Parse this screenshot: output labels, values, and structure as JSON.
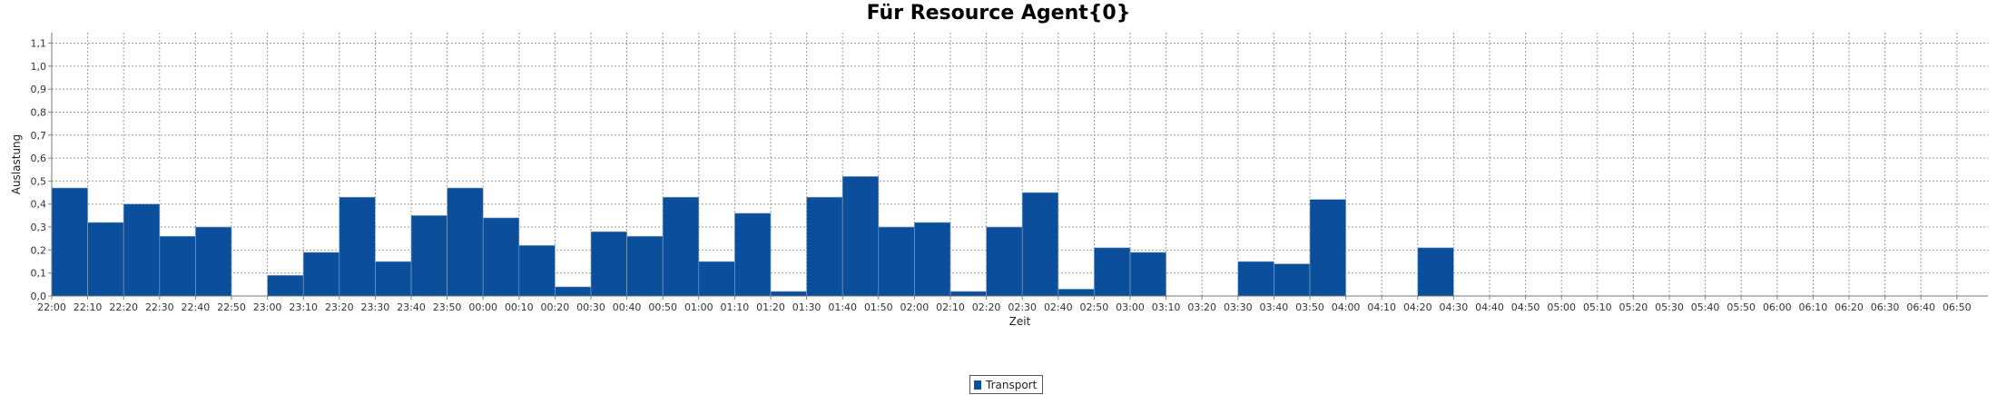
{
  "chart_data": {
    "type": "bar",
    "title": "Für Resource Agent{0}",
    "xlabel": "Zeit",
    "ylabel": "Auslastung",
    "ylim": [
      0,
      1.1
    ],
    "yticks": [
      "0,0",
      "0,1",
      "0,2",
      "0,3",
      "0,4",
      "0,5",
      "0,6",
      "0,7",
      "0,8",
      "0,9",
      "1,0",
      "1,1"
    ],
    "grid": true,
    "legend_position": "bottom-center",
    "categories": [
      "22:00",
      "22:10",
      "22:20",
      "22:30",
      "22:40",
      "22:50",
      "23:00",
      "23:10",
      "23:20",
      "23:30",
      "23:40",
      "23:50",
      "00:00",
      "00:10",
      "00:20",
      "00:30",
      "00:40",
      "00:50",
      "01:00",
      "01:10",
      "01:20",
      "01:30",
      "01:40",
      "01:50",
      "02:00",
      "02:10",
      "02:20",
      "02:30",
      "02:40",
      "02:50",
      "03:00",
      "03:10",
      "03:20",
      "03:30",
      "03:40",
      "03:50",
      "04:00",
      "04:10",
      "04:20",
      "04:30",
      "04:40",
      "04:50",
      "05:00",
      "05:10",
      "05:20",
      "05:30",
      "05:40",
      "05:50",
      "06:00",
      "06:10",
      "06:20",
      "06:30",
      "06:40",
      "06:50"
    ],
    "series": [
      {
        "name": "Transport",
        "color": "#0b4f9c",
        "values": [
          0.47,
          0.32,
          0.4,
          0.26,
          0.3,
          0,
          0.09,
          0.19,
          0.43,
          0.15,
          0.35,
          0.47,
          0.34,
          0.22,
          0.04,
          0.28,
          0.26,
          0.43,
          0.15,
          0.36,
          0.02,
          0.43,
          0.52,
          0.3,
          0.32,
          0.02,
          0.3,
          0.45,
          0.03,
          0.21,
          0.19,
          0,
          0,
          0.15,
          0.14,
          0.42,
          0,
          0,
          0.21,
          0,
          0,
          0,
          0,
          0,
          0,
          0,
          0,
          0,
          0,
          0,
          0,
          0,
          0,
          0
        ]
      }
    ]
  }
}
